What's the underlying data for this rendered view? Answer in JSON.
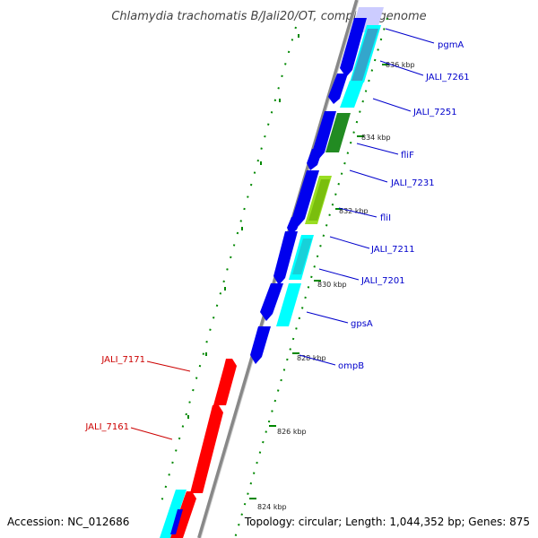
{
  "title": "Chlamydia trachomatis B/Jali20/OT, complete genome",
  "footer": {
    "accession": "Accession: NC_012686",
    "summary": "Topology: circular; Length: 1,044,352 bp; Genes: 875"
  },
  "colors": {
    "forward_strand": "#0000ee",
    "reverse_strand": "#ff0000",
    "cog_cyan": "#00ffff",
    "cog_dark_green": "#228b22",
    "cog_yellow_green": "#99dd22",
    "cog_lavender": "#ccccff",
    "ruler_tick": "#008800",
    "backbone": "#888888",
    "label_forward": "#0000cc",
    "label_reverse": "#cc0000"
  },
  "scale_marks": [
    "836 kbp",
    "834 kbp",
    "832 kbp",
    "830 kbp",
    "828 kbp",
    "826 kbp",
    "824 kbp"
  ],
  "forward_gene_labels": [
    "pgmA",
    "JALI_7261",
    "JALI_7251",
    "fliF",
    "JALI_7231",
    "fliI",
    "JALI_7211",
    "JALI_7201",
    "gpsA",
    "ompB"
  ],
  "reverse_gene_labels": [
    "JALI_7171",
    "JALI_7161"
  ]
}
